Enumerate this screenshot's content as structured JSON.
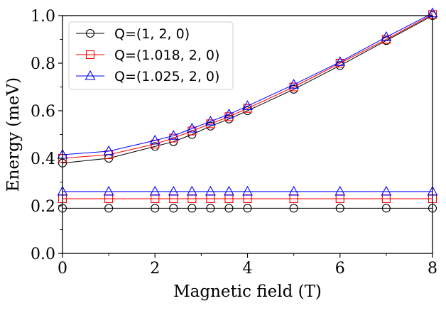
{
  "chart_data": {
    "type": "line",
    "title": "",
    "xlabel": "Magnetic field (T)",
    "ylabel": "Energy (meV)",
    "xlim": [
      0,
      8
    ],
    "ylim": [
      0.0,
      1.0
    ],
    "xticks": [
      0,
      2,
      4,
      6,
      8
    ],
    "xtick_labels": [
      "0",
      "2",
      "4",
      "6",
      "8"
    ],
    "yticks": [
      0.0,
      0.2,
      0.4,
      0.6,
      0.8,
      1.0
    ],
    "ytick_labels": [
      "0.0",
      "0.2",
      "0.4",
      "0.6",
      "0.8",
      "1.0"
    ],
    "grid": false,
    "legend_position": "top-left",
    "x": [
      0,
      1,
      2,
      2.4,
      2.8,
      3.2,
      3.6,
      4,
      5,
      6,
      7,
      8
    ],
    "series": [
      {
        "name": "Q=(1, 2, 0)",
        "color": "#000000",
        "marker": "circle",
        "upper": [
          0.38,
          0.4,
          0.45,
          0.47,
          0.5,
          0.535,
          0.565,
          0.6,
          0.69,
          0.79,
          0.895,
          1.0
        ],
        "lower": [
          0.19,
          0.19,
          0.19,
          0.19,
          0.19,
          0.19,
          0.19,
          0.19,
          0.19,
          0.19,
          0.19,
          0.19
        ]
      },
      {
        "name": "Q=(1.018, 2, 0)",
        "color": "#ff0000",
        "marker": "square",
        "upper": [
          0.4,
          0.415,
          0.46,
          0.485,
          0.515,
          0.545,
          0.575,
          0.61,
          0.7,
          0.8,
          0.9,
          1.005
        ],
        "lower": [
          0.23,
          0.23,
          0.23,
          0.23,
          0.23,
          0.23,
          0.23,
          0.23,
          0.23,
          0.23,
          0.23,
          0.23
        ]
      },
      {
        "name": "Q=(1.025, 2, 0)",
        "color": "#0000ff",
        "marker": "triangle",
        "upper": [
          0.415,
          0.43,
          0.475,
          0.495,
          0.525,
          0.555,
          0.585,
          0.62,
          0.71,
          0.805,
          0.91,
          1.01
        ],
        "lower": [
          0.26,
          0.26,
          0.26,
          0.26,
          0.26,
          0.26,
          0.26,
          0.26,
          0.26,
          0.26,
          0.26,
          0.26
        ]
      }
    ]
  }
}
